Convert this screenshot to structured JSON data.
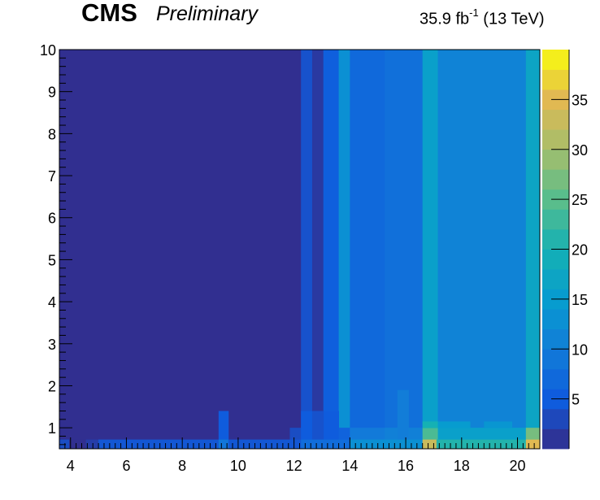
{
  "header": {
    "experiment": "CMS",
    "status": "Preliminary",
    "lumi_value": "35.9 fb",
    "lumi_exp": "-1",
    "energy": " (13 TeV)"
  },
  "chart_data": {
    "type": "heatmap",
    "title": "",
    "xlabel": "",
    "ylabel": "",
    "xlim": [
      3.6,
      20.8
    ],
    "ylim": [
      0.5,
      10
    ],
    "x_ticks": [
      4,
      6,
      8,
      10,
      12,
      14,
      16,
      18,
      20
    ],
    "y_ticks": [
      1,
      2,
      3,
      4,
      5,
      6,
      7,
      8,
      9,
      10
    ],
    "colorbar": {
      "range": [
        0,
        40
      ],
      "ticks": [
        5,
        10,
        15,
        20,
        25,
        30,
        35
      ],
      "palette": "kBird"
    },
    "region_x_edges": [
      3.6,
      12.25,
      12.65,
      13.05,
      13.6,
      14.0,
      15.25,
      16.6,
      17.15,
      20.3,
      20.8
    ],
    "region_values": [
      0.5,
      4.0,
      1.5,
      5.5,
      13.0,
      7.0,
      8.0,
      16.0,
      11.0,
      17.0
    ],
    "bottom_row_y": [
      0.5,
      0.72
    ],
    "bottom_row_x_edges": [
      3.6,
      3.95,
      4.55,
      5.0,
      9.3,
      9.65,
      12.25,
      14.0,
      16.6,
      17.1,
      20.3,
      20.8
    ],
    "bottom_row_values": [
      3.5,
      0.5,
      2.0,
      4.5,
      9.0,
      4.5,
      7.5,
      13.0,
      33.0,
      21.0,
      35.0
    ],
    "low_y_patches": [
      {
        "x": [
          9.3,
          9.65
        ],
        "y": [
          0.72,
          1.4
        ],
        "value": 5.0
      },
      {
        "x": [
          11.85,
          12.25
        ],
        "y": [
          0.72,
          1.0
        ],
        "value": 3.5
      },
      {
        "x": [
          12.25,
          13.6
        ],
        "y": [
          0.72,
          1.4
        ],
        "value": 5.0
      },
      {
        "x": [
          12.65,
          13.05
        ],
        "y": [
          0.72,
          1.4
        ],
        "value": 4.0
      },
      {
        "x": [
          13.6,
          14.0
        ],
        "y": [
          0.72,
          1.0
        ],
        "value": 6.0
      },
      {
        "x": [
          14.0,
          15.25
        ],
        "y": [
          0.72,
          1.0
        ],
        "value": 9.5
      },
      {
        "x": [
          15.25,
          16.6
        ],
        "y": [
          0.72,
          1.0
        ],
        "value": 10.5
      },
      {
        "x": [
          15.7,
          16.1
        ],
        "y": [
          0.72,
          1.9
        ],
        "value": 10.0
      },
      {
        "x": [
          16.6,
          17.15
        ],
        "y": [
          0.72,
          1.0
        ],
        "value": 24.0
      },
      {
        "x": [
          16.6,
          17.15
        ],
        "y": [
          1.0,
          1.15
        ],
        "value": 20.0
      },
      {
        "x": [
          17.15,
          20.3
        ],
        "y": [
          0.72,
          1.0
        ],
        "value": 16.0
      },
      {
        "x": [
          17.15,
          18.3
        ],
        "y": [
          1.0,
          1.15
        ],
        "value": 15.0
      },
      {
        "x": [
          18.8,
          19.8
        ],
        "y": [
          1.0,
          1.15
        ],
        "value": 14.0
      },
      {
        "x": [
          20.3,
          20.8
        ],
        "y": [
          0.72,
          1.0
        ],
        "value": 27.0
      }
    ]
  }
}
